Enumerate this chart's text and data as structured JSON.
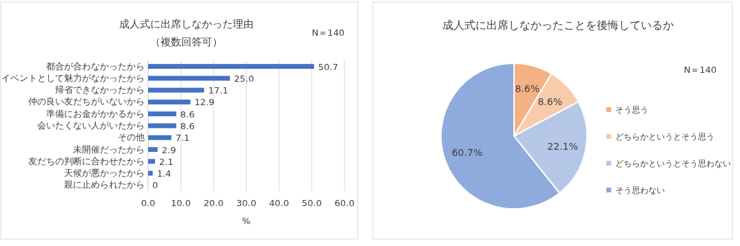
{
  "chart_data": [
    {
      "type": "bar",
      "orientation": "horizontal",
      "title": "成人式に出席しなかった理由",
      "subtitle": "（複数回答可）",
      "xlabel": "%",
      "annotations": [
        "N＝140"
      ],
      "categories": [
        "都合が合わなかったから",
        "イベントとして魅力がなかったから",
        "帰省できなかったから",
        "仲の良い友だちがいないから",
        "準備にお金がかかるから",
        "会いたくない人がいたから",
        "その他",
        "未開催だったから",
        "友だちの判断に合わせたから",
        "天候が悪かったから",
        "親に止められたから"
      ],
      "values": [
        50.7,
        25.0,
        17.1,
        12.9,
        8.6,
        8.6,
        7.1,
        2.9,
        2.1,
        1.4,
        0
      ],
      "value_labels": [
        "50.7",
        "25.0",
        "17.1",
        "12.9",
        "8.6",
        "8.6",
        "7.1",
        "2.9",
        "2.1",
        "1.4",
        "0"
      ],
      "color": "#4472c4",
      "xlim": [
        0,
        60
      ],
      "xticks": [
        {
          "value": 0,
          "label": "0.0"
        },
        {
          "value": 10,
          "label": "10.0"
        },
        {
          "value": 20,
          "label": "20.0"
        },
        {
          "value": 30,
          "label": "30.0"
        },
        {
          "value": 40,
          "label": "40.0"
        },
        {
          "value": 50,
          "label": "50.0"
        },
        {
          "value": 60,
          "label": "60.0"
        }
      ],
      "grid": "x"
    },
    {
      "type": "pie",
      "title": "成人式に出席しなかったことを後悔しているか",
      "annotations": [
        "N＝140"
      ],
      "categories": [
        "そう思う",
        "どちらかというとそう思う",
        "どちらかというとそう思わない",
        "そう思わない"
      ],
      "values": [
        8.6,
        8.6,
        22.1,
        60.7
      ],
      "value_labels": [
        "8.6%",
        "8.6%",
        "22.1%",
        "60.7%"
      ],
      "colors": [
        "#f4b183",
        "#f8cbad",
        "#b4c7e7",
        "#8faadc"
      ],
      "legend": "right"
    }
  ]
}
